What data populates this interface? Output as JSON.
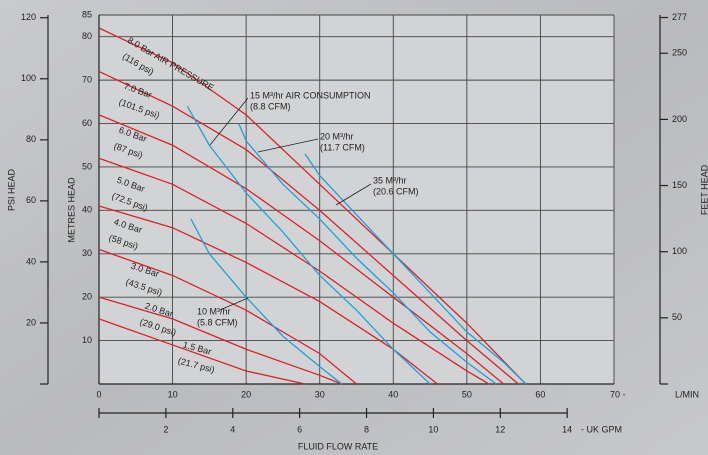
{
  "chart_data": {
    "type": "line",
    "x_label": "L/MIN",
    "x2_label": "- UK GPM",
    "x_title": "FLUID FLOW RATE",
    "y_label": "METRES HEAD",
    "psi_label": "PSI HEAD",
    "feet_label": "FEET HEAD",
    "xlim": [
      0,
      70
    ],
    "xticks": [
      0,
      10,
      20,
      30,
      40,
      50,
      60,
      {
        "value": 70,
        "label": "70 -"
      }
    ],
    "ylim": [
      0,
      85
    ],
    "yticks": [
      10,
      20,
      30,
      40,
      50,
      60,
      70,
      80,
      85
    ],
    "gpm_lim": [
      0,
      15.4
    ],
    "gpm_ticks": [
      2,
      4,
      6,
      8,
      10,
      12,
      14
    ],
    "psi_lim": [
      0,
      120.9
    ],
    "psi_ticks": [
      20,
      40,
      60,
      80,
      100,
      120
    ],
    "feet_lim": [
      0,
      278.9
    ],
    "feet_ticks": [
      50,
      100,
      150,
      200,
      250,
      277
    ],
    "grid": true,
    "series": [
      {
        "name": "8.0 Bar AIR PRESSURE",
        "note": "(116 psi)",
        "color": "#d8232a",
        "x": [
          0,
          10,
          20,
          30,
          40,
          50,
          58
        ],
        "values": [
          82,
          74,
          62,
          46,
          30,
          14,
          0
        ]
      },
      {
        "name": "7.0 Bar",
        "note": "(101.5 psi)",
        "color": "#d8232a",
        "x": [
          0,
          10,
          20,
          30,
          40,
          50,
          57
        ],
        "values": [
          72,
          64,
          54,
          40,
          25,
          10,
          0
        ]
      },
      {
        "name": "6.0 Bar",
        "note": "(87 psi)",
        "color": "#d8232a",
        "x": [
          0,
          10,
          20,
          30,
          40,
          50,
          55
        ],
        "values": [
          62,
          55,
          45,
          33,
          20,
          7,
          0
        ]
      },
      {
        "name": "5.0 Bar",
        "note": "(72.5 psi)",
        "color": "#d8232a",
        "x": [
          0,
          10,
          20,
          30,
          40,
          50,
          53
        ],
        "values": [
          52,
          46,
          37,
          26,
          14,
          3,
          0
        ]
      },
      {
        "name": "4.0 Bar",
        "note": "(58 psi)",
        "color": "#d8232a",
        "x": [
          0,
          10,
          20,
          30,
          40,
          46
        ],
        "values": [
          41,
          36,
          28,
          19,
          8,
          0
        ]
      },
      {
        "name": "3.0 Bar",
        "note": "(43.5 psi)",
        "color": "#d8232a",
        "x": [
          0,
          10,
          20,
          30,
          35
        ],
        "values": [
          31,
          25,
          17,
          7,
          0
        ]
      },
      {
        "name": "2.0 Bar",
        "note": "(29.0 psi)",
        "color": "#d8232a",
        "x": [
          0,
          10,
          20,
          30,
          33
        ],
        "values": [
          20,
          15,
          8,
          2,
          0
        ]
      },
      {
        "name": "1.5 Bar",
        "note": "(21.7 psi)",
        "color": "#d8232a",
        "x": [
          0,
          10,
          20,
          28
        ],
        "values": [
          15,
          9,
          3,
          0
        ]
      },
      {
        "name": "15 M³/hr AIR CONSUMPTION",
        "note": "(8.8 CFM)",
        "color": "#1aa3d9",
        "x": [
          12,
          15,
          20,
          25,
          30,
          35,
          40,
          45
        ],
        "values": [
          64,
          55,
          44,
          35,
          25,
          17,
          8,
          0
        ]
      },
      {
        "name": "20 M³/hr",
        "note": "(11.7 CFM)",
        "color": "#1aa3d9",
        "x": [
          19,
          20,
          25,
          30,
          35,
          40,
          45,
          50,
          54
        ],
        "values": [
          60,
          56,
          46,
          38,
          29,
          21,
          12,
          5,
          0
        ]
      },
      {
        "name": "35 M³/hr",
        "note": "(20.6 CFM)",
        "color": "#1aa3d9",
        "x": [
          28,
          30,
          35,
          40,
          45,
          50,
          55,
          58
        ],
        "values": [
          53,
          48,
          39,
          30,
          21,
          12,
          5,
          0
        ]
      },
      {
        "name": "10 M³/hr",
        "note": "(5.8 CFM)",
        "color": "#1aa3d9",
        "x": [
          12.5,
          15,
          20,
          25,
          30,
          33
        ],
        "values": [
          38,
          30,
          20,
          11,
          4,
          0
        ]
      }
    ]
  }
}
